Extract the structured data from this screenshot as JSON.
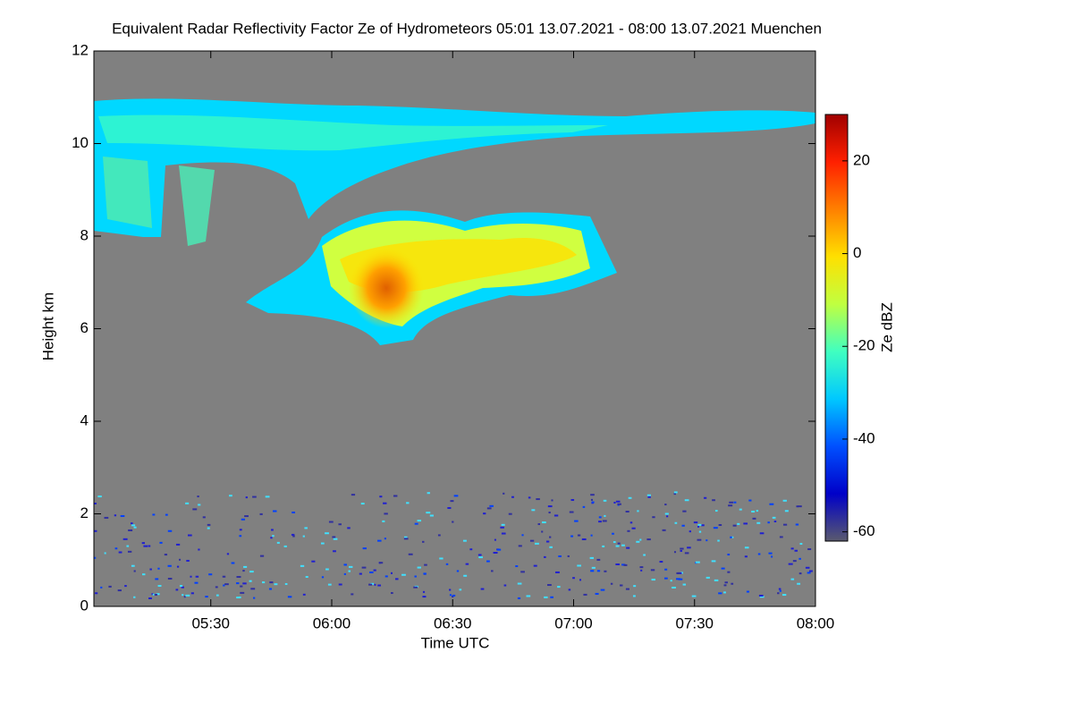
{
  "chart_data": {
    "type": "heatmap",
    "title": "Equivalent Radar Reflectivity Factor Ze of Hydrometeors   05:01 13.07.2021 - 08:00 13.07.2021 Muenchen",
    "xlabel": "Time UTC",
    "ylabel": "Height km",
    "colorbar_label": "Ze dBZ",
    "xlim": [
      301,
      480
    ],
    "xticks": [
      {
        "value": 330,
        "label": "05:30"
      },
      {
        "value": 360,
        "label": "06:00"
      },
      {
        "value": 390,
        "label": "06:30"
      },
      {
        "value": 420,
        "label": "07:00"
      },
      {
        "value": 450,
        "label": "07:30"
      },
      {
        "value": 480,
        "label": "08:00"
      }
    ],
    "ylim": [
      0,
      12
    ],
    "yticks": [
      0,
      2,
      4,
      6,
      8,
      10,
      12
    ],
    "clim": [
      -62,
      30
    ],
    "cticks": [
      -60,
      -40,
      -20,
      0,
      20
    ],
    "background": "#808080",
    "colormap": [
      "#5a5a6e",
      "#0000c8",
      "#0050ff",
      "#00c8ff",
      "#40ffc0",
      "#c0ff40",
      "#ffe000",
      "#ff8000",
      "#ff2000",
      "#a00000"
    ]
  }
}
